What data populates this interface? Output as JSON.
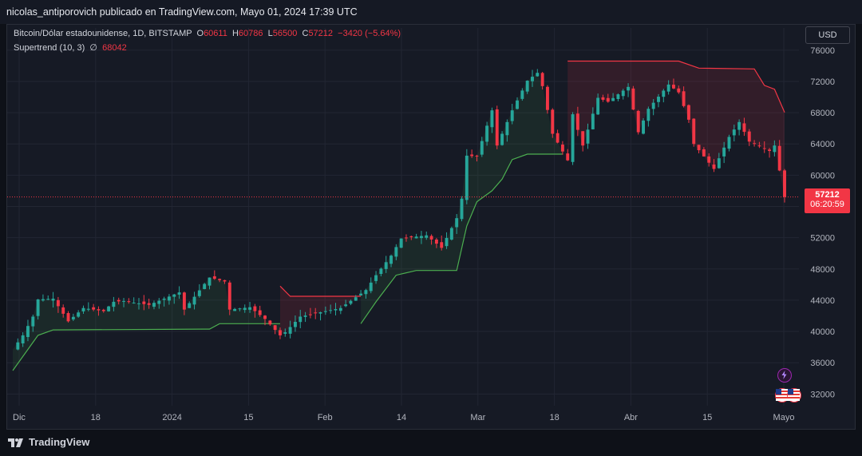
{
  "header": {
    "text": "nicolas_antiporovich publicado en TradingView.com, Mayo 01, 2024 17:39 UTC"
  },
  "legend": {
    "symbol": "Bitcoin/Dólar estadounidense, 1D, BITSTAMP",
    "o_label": "O",
    "o_value": "60611",
    "h_label": "H",
    "h_value": "60786",
    "l_label": "L",
    "l_value": "56500",
    "c_label": "C",
    "c_value": "57212",
    "change": "−3420 (−5.64%)",
    "indicator": "Supertrend (10, 3)",
    "indicator_symbol": "∅",
    "indicator_value": "68042"
  },
  "currency_button": "USD",
  "price_tag": {
    "price": "57212",
    "countdown": "06:20:59"
  },
  "footer": {
    "brand": "TradingView"
  },
  "colors": {
    "up": "#26a69a",
    "down": "#f23645",
    "supertrend_up": "#4caf50",
    "supertrend_down": "#f23645",
    "background": "#161a25",
    "grid": "#222633"
  },
  "chart_data": {
    "type": "candlestick",
    "title": "Bitcoin/Dólar estadounidense, 1D, BITSTAMP",
    "y_ticks": [
      "76000",
      "72000",
      "68000",
      "64000",
      "60000",
      "56000",
      "52000",
      "48000",
      "44000",
      "40000",
      "36000",
      "32000"
    ],
    "x_tick_labels": [
      "Dic",
      "18",
      "2024",
      "15",
      "Feb",
      "14",
      "Mar",
      "18",
      "Abr",
      "15",
      "Mayo"
    ],
    "ylim": [
      30500,
      76800
    ],
    "start_date": "2023-11-30",
    "end_date": "2024-05-01",
    "close_series": [
      {
        "date": "2023-11-30",
        "close": 37700
      },
      {
        "date": "2023-12-02",
        "close": 39500
      },
      {
        "date": "2023-12-04",
        "close": 41900
      },
      {
        "date": "2023-12-05",
        "close": 44100
      },
      {
        "date": "2023-12-08",
        "close": 44200
      },
      {
        "date": "2023-12-11",
        "close": 41300
      },
      {
        "date": "2023-12-14",
        "close": 43000
      },
      {
        "date": "2023-12-18",
        "close": 42600
      },
      {
        "date": "2023-12-20",
        "close": 43800
      },
      {
        "date": "2023-12-22",
        "close": 43900
      },
      {
        "date": "2023-12-27",
        "close": 43400
      },
      {
        "date": "2024-01-02",
        "close": 45000
      },
      {
        "date": "2024-01-03",
        "close": 42800
      },
      {
        "date": "2024-01-08",
        "close": 46900
      },
      {
        "date": "2024-01-11",
        "close": 46400
      },
      {
        "date": "2024-01-12",
        "close": 42800
      },
      {
        "date": "2024-01-16",
        "close": 43100
      },
      {
        "date": "2024-01-19",
        "close": 41600
      },
      {
        "date": "2024-01-22",
        "close": 39500
      },
      {
        "date": "2024-01-23",
        "close": 39900
      },
      {
        "date": "2024-01-26",
        "close": 41900
      },
      {
        "date": "2024-01-31",
        "close": 42600
      },
      {
        "date": "2024-02-03",
        "close": 43000
      },
      {
        "date": "2024-02-08",
        "close": 45300
      },
      {
        "date": "2024-02-10",
        "close": 47200
      },
      {
        "date": "2024-02-13",
        "close": 49700
      },
      {
        "date": "2024-02-15",
        "close": 51900
      },
      {
        "date": "2024-02-20",
        "close": 52300
      },
      {
        "date": "2024-02-23",
        "close": 50700
      },
      {
        "date": "2024-02-26",
        "close": 54500
      },
      {
        "date": "2024-02-27",
        "close": 57000
      },
      {
        "date": "2024-02-28",
        "close": 62500
      },
      {
        "date": "2024-03-01",
        "close": 62400
      },
      {
        "date": "2024-03-04",
        "close": 68300
      },
      {
        "date": "2024-03-05",
        "close": 63800
      },
      {
        "date": "2024-03-08",
        "close": 68300
      },
      {
        "date": "2024-03-11",
        "close": 72100
      },
      {
        "date": "2024-03-13",
        "close": 73100
      },
      {
        "date": "2024-03-14",
        "close": 71400
      },
      {
        "date": "2024-03-16",
        "close": 65300
      },
      {
        "date": "2024-03-19",
        "close": 61900
      },
      {
        "date": "2024-03-20",
        "close": 67800
      },
      {
        "date": "2024-03-22",
        "close": 63800
      },
      {
        "date": "2024-03-25",
        "close": 69900
      },
      {
        "date": "2024-03-27",
        "close": 69400
      },
      {
        "date": "2024-03-31",
        "close": 71300
      },
      {
        "date": "2024-04-02",
        "close": 65500
      },
      {
        "date": "2024-04-04",
        "close": 68500
      },
      {
        "date": "2024-04-08",
        "close": 71600
      },
      {
        "date": "2024-04-10",
        "close": 70600
      },
      {
        "date": "2024-04-12",
        "close": 67100
      },
      {
        "date": "2024-04-13",
        "close": 64000
      },
      {
        "date": "2024-04-17",
        "close": 60800
      },
      {
        "date": "2024-04-20",
        "close": 64900
      },
      {
        "date": "2024-04-22",
        "close": 66800
      },
      {
        "date": "2024-04-24",
        "close": 64300
      },
      {
        "date": "2024-04-28",
        "close": 63100
      },
      {
        "date": "2024-04-29",
        "close": 63800
      },
      {
        "date": "2024-04-30",
        "close": 60600
      },
      {
        "date": "2024-05-01",
        "close": 57212
      }
    ],
    "last_candle": {
      "date": "2024-05-01",
      "open": 60611,
      "high": 60786,
      "low": 56500,
      "close": 57212
    },
    "series": [
      {
        "name": "Supertrend (10, 3)",
        "segments": [
          {
            "trend": "up",
            "points": [
              {
                "date": "2023-11-30",
                "value": 35000
              },
              {
                "date": "2023-12-05",
                "value": 39500
              },
              {
                "date": "2023-12-08",
                "value": 40200
              },
              {
                "date": "2024-01-08",
                "value": 40300
              },
              {
                "date": "2024-01-10",
                "value": 41000
              },
              {
                "date": "2024-01-22",
                "value": 41000
              }
            ]
          },
          {
            "trend": "down",
            "points": [
              {
                "date": "2024-01-22",
                "value": 45800
              },
              {
                "date": "2024-01-24",
                "value": 44500
              },
              {
                "date": "2024-02-07",
                "value": 44500
              }
            ]
          },
          {
            "trend": "up",
            "points": [
              {
                "date": "2024-02-07",
                "value": 41000
              },
              {
                "date": "2024-02-10",
                "value": 43800
              },
              {
                "date": "2024-02-14",
                "value": 47200
              },
              {
                "date": "2024-02-18",
                "value": 47800
              },
              {
                "date": "2024-02-26",
                "value": 47800
              },
              {
                "date": "2024-02-28",
                "value": 53500
              },
              {
                "date": "2024-03-01",
                "value": 56600
              },
              {
                "date": "2024-03-04",
                "value": 58000
              },
              {
                "date": "2024-03-06",
                "value": 59500
              },
              {
                "date": "2024-03-08",
                "value": 62000
              },
              {
                "date": "2024-03-11",
                "value": 62700
              },
              {
                "date": "2024-03-18",
                "value": 62700
              }
            ]
          },
          {
            "trend": "down",
            "points": [
              {
                "date": "2024-03-19",
                "value": 74600
              },
              {
                "date": "2024-04-10",
                "value": 74600
              },
              {
                "date": "2024-04-14",
                "value": 73700
              },
              {
                "date": "2024-04-25",
                "value": 73600
              },
              {
                "date": "2024-04-27",
                "value": 71500
              },
              {
                "date": "2024-04-29",
                "value": 71000
              },
              {
                "date": "2024-05-01",
                "value": 68042
              }
            ]
          }
        ]
      }
    ]
  }
}
